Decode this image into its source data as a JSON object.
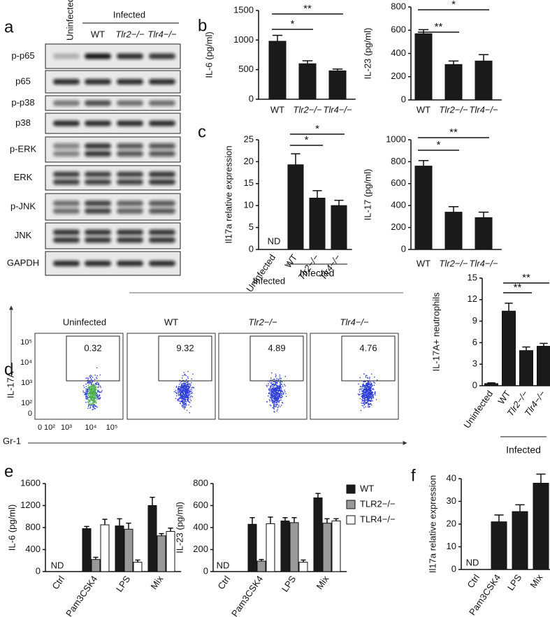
{
  "panel_labels": [
    "a",
    "b",
    "c",
    "d",
    "e",
    "f"
  ],
  "blot": {
    "uninfected": "Uninfected",
    "infected": "Infected",
    "lanes": [
      "WT",
      "Tlr2−/−",
      "Tlr4−/−"
    ],
    "rows": [
      "p-p65",
      "p65",
      "p-p38",
      "p38",
      "p-ERK",
      "ERK",
      "p-JNK",
      "JNK",
      "GAPDH"
    ]
  },
  "flow": {
    "infected": "Infected",
    "columns": [
      "Uninfected",
      "WT",
      "Tlr2−/−",
      "Tlr4−/−"
    ],
    "gates": [
      0.32,
      9.32,
      4.89,
      4.76
    ],
    "ylabel": "IL-17A",
    "xlabel": "Gr-1",
    "yticks": [
      "10⁵",
      "10⁴",
      "10³",
      "10²",
      "0"
    ],
    "xticks": [
      "0",
      "10²",
      "10³",
      "10⁴",
      "10⁵"
    ]
  },
  "chart_data": [
    {
      "type": "bar",
      "ylabel": "IL-6 (pg/ml)",
      "categories": [
        "WT",
        "Tlr2−/−",
        "Tlr4−/−"
      ],
      "values": [
        980,
        600,
        480
      ],
      "errors": [
        100,
        50,
        30
      ],
      "color": "#1a1a1a",
      "ylim": [
        0,
        1500
      ],
      "yticks": [
        0,
        500,
        1000,
        1500
      ],
      "significance": [
        {
          "pair": [
            "WT",
            "Tlr2−/−"
          ],
          "label": "*"
        },
        {
          "pair": [
            "WT",
            "Tlr4−/−"
          ],
          "label": "**"
        }
      ]
    },
    {
      "type": "bar",
      "ylabel": "IL-23 (pg/ml)",
      "categories": [
        "WT",
        "Tlr2−/−",
        "Tlr4−/−"
      ],
      "values": [
        570,
        305,
        335
      ],
      "errors": [
        35,
        30,
        55
      ],
      "color": "#1a1a1a",
      "ylim": [
        0,
        800
      ],
      "yticks": [
        0,
        200,
        400,
        600,
        800
      ],
      "significance": [
        {
          "pair": [
            "WT",
            "Tlr2−/−"
          ],
          "label": "**"
        },
        {
          "pair": [
            "WT",
            "Tlr4−/−"
          ],
          "label": "*"
        }
      ]
    },
    {
      "type": "bar",
      "ylabel": "Il17a relative expression",
      "categories": [
        "Uninfected",
        "WT",
        "Tlr2−/−",
        "Tlr4−/−"
      ],
      "values": [
        null,
        19.3,
        11.7,
        10.0
      ],
      "errors": [
        null,
        2.5,
        1.7,
        1.2
      ],
      "color": "#1a1a1a",
      "ylim": [
        0,
        25
      ],
      "yticks": [
        0,
        5,
        10,
        15,
        20,
        25
      ],
      "annotations": [
        "ND"
      ],
      "group_label": "Infected",
      "significance": [
        {
          "pair": [
            "WT",
            "Tlr2−/−"
          ],
          "label": "*"
        },
        {
          "pair": [
            "WT",
            "Tlr4−/−"
          ],
          "label": "*"
        }
      ]
    },
    {
      "type": "bar",
      "ylabel": "IL-17 (pg/ml)",
      "categories": [
        "WT",
        "Tlr2−/−",
        "Tlr4−/−"
      ],
      "values": [
        760,
        340,
        290
      ],
      "errors": [
        50,
        50,
        50
      ],
      "color": "#1a1a1a",
      "ylim": [
        0,
        1000
      ],
      "yticks": [
        0,
        200,
        400,
        600,
        800,
        1000
      ],
      "significance": [
        {
          "pair": [
            "WT",
            "Tlr2−/−"
          ],
          "label": "*"
        },
        {
          "pair": [
            "WT",
            "Tlr4−/−"
          ],
          "label": "**"
        }
      ]
    },
    {
      "type": "bar",
      "ylabel": "IL-17A+ neutrophils",
      "categories": [
        "Uninfected",
        "WT",
        "Tlr2−/−",
        "Tlr4−/−"
      ],
      "values": [
        0.3,
        10.4,
        4.9,
        5.5
      ],
      "errors": [
        0.1,
        1.1,
        0.5,
        0.4
      ],
      "color": "#1a1a1a",
      "ylim": [
        0,
        15
      ],
      "yticks": [
        0,
        3,
        6,
        9,
        12,
        15
      ],
      "group_label": "Infected",
      "significance": [
        {
          "pair": [
            "WT",
            "Tlr2−/−"
          ],
          "label": "**"
        },
        {
          "pair": [
            "WT",
            "Tlr4−/−"
          ],
          "label": "**"
        }
      ]
    },
    {
      "type": "grouped_bar",
      "ylabel": "IL-6 (pg/ml)",
      "categories": [
        "Ctrl",
        "Pam3CSK4",
        "LPS",
        "Mix"
      ],
      "ylim": [
        0,
        1600
      ],
      "yticks": [
        0,
        400,
        800,
        1200,
        1600
      ],
      "annotations": [
        "ND"
      ],
      "series": [
        {
          "name": "WT",
          "color": "#1a1a1a",
          "values": [
            null,
            780,
            830,
            1200
          ],
          "errors": [
            null,
            40,
            130,
            150
          ]
        },
        {
          "name": "TLR2−/−",
          "color": "#999999",
          "values": [
            null,
            220,
            770,
            650
          ],
          "errors": [
            null,
            40,
            110,
            40
          ]
        },
        {
          "name": "TLR4−/−",
          "color": "#ffffff",
          "values": [
            null,
            850,
            170,
            730
          ],
          "errors": [
            null,
            100,
            40,
            60
          ]
        }
      ]
    },
    {
      "type": "grouped_bar",
      "ylabel": "IL-23 (pg/ml)",
      "categories": [
        "Ctrl",
        "Pam3CSK4",
        "LPS",
        "Mix"
      ],
      "ylim": [
        0,
        800
      ],
      "yticks": [
        0,
        200,
        400,
        600,
        800
      ],
      "annotations": [
        "ND"
      ],
      "series": [
        {
          "color": "#1a1a1a",
          "values": [
            null,
            430,
            460,
            670
          ],
          "errors": [
            null,
            60,
            30,
            40
          ]
        },
        {
          "color": "#999999",
          "values": [
            null,
            95,
            445,
            440
          ],
          "errors": [
            null,
            15,
            45,
            40
          ]
        },
        {
          "color": "#ffffff",
          "values": [
            null,
            435,
            85,
            460
          ],
          "errors": [
            null,
            60,
            20,
            20
          ]
        }
      ]
    },
    {
      "type": "bar",
      "ylabel": "Il17a relative expression",
      "categories": [
        "Ctrl",
        "Pam3CSK4",
        "LPS",
        "Mix"
      ],
      "values": [
        null,
        21,
        25.5,
        38
      ],
      "errors": [
        null,
        3,
        3,
        4
      ],
      "color": "#1a1a1a",
      "ylim": [
        0,
        40
      ],
      "yticks": [
        0,
        10,
        20,
        30,
        40
      ],
      "annotations": [
        "ND"
      ]
    }
  ]
}
